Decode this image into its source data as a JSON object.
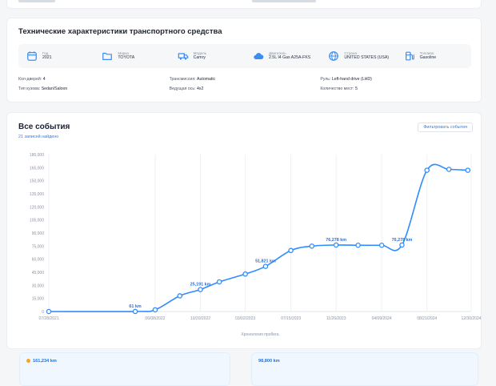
{
  "top_card": {},
  "specs": {
    "title": "Технические характеристики транспортного средства",
    "items": [
      {
        "label": "Год",
        "value": "2021",
        "icon": "calendar-icon"
      },
      {
        "label": "Марка",
        "value": "TOYOTA",
        "icon": "folder-icon"
      },
      {
        "label": "Модель",
        "value": "Camry",
        "icon": "truck-icon"
      },
      {
        "label": "Двигатель",
        "value": "2.5L I4 Gas A25A-FKS",
        "icon": "cloud-engine-icon"
      },
      {
        "label": "Страна",
        "value": "UNITED STATES (USA)",
        "icon": "globe-icon"
      },
      {
        "label": "Топливо",
        "value": "Gasoline",
        "icon": "fuel-icon"
      }
    ],
    "extra": [
      [
        {
          "label": "Кол-дверей:",
          "value": "4"
        },
        {
          "label": "Трансмиссия:",
          "value": "Automatic"
        },
        {
          "label": "Руль:",
          "value": "Left-hand drive (LHD)"
        }
      ],
      [
        {
          "label": "Тип кузова:",
          "value": "Sedan/Saloon"
        },
        {
          "label": "Ведущая ось:",
          "value": "4x2"
        },
        {
          "label": "Количество мест:",
          "value": "5"
        }
      ]
    ]
  },
  "events": {
    "title": "Все события",
    "subtitle": "21 записей найдено",
    "button": "Фильтровать события"
  },
  "chart_data": {
    "type": "line",
    "x_tick_labels": [
      "07/28/2021",
      "06/08/2022",
      "10/20/2022",
      "03/02/2023",
      "07/15/2023",
      "11/26/2023",
      "04/09/2024",
      "08/21/2024",
      "12/30/2024"
    ],
    "xlim": [
      "07/28/2021",
      "12/30/2024"
    ],
    "x_dates": [
      "07/28/2021",
      "04/10/2022",
      "06/08/2022",
      "08/20/2022",
      "10/20/2022",
      "12/15/2022",
      "03/02/2023",
      "05/01/2023",
      "07/15/2023",
      "09/15/2023",
      "11/26/2023",
      "01/30/2024",
      "04/09/2024",
      "06/08/2024",
      "08/21/2024",
      "10/25/2024",
      "12/20/2024"
    ],
    "y": [
      0,
      61,
      2000,
      18000,
      25191,
      34000,
      43000,
      51821,
      70000,
      75000,
      76278,
      76000,
      76000,
      76278,
      162000,
      163000,
      162000
    ],
    "ylim": [
      0,
      180000
    ],
    "y_ticks": [
      "180,000",
      "165,000",
      "150,000",
      "135,000",
      "120,000",
      "105,000",
      "90,000",
      "75,000",
      "60,000",
      "45,000",
      "30,000",
      "15,000",
      "0"
    ],
    "point_labels": [
      {
        "index": 1,
        "text": "61 km"
      },
      {
        "index": 4,
        "text": "25,191 km"
      },
      {
        "index": 7,
        "text": "51,821 km"
      },
      {
        "index": 10,
        "text": "76,278 km"
      },
      {
        "index": 13,
        "text": "76,278 km"
      }
    ],
    "xlabel": "Хронология пробега",
    "color": "#2f8bff",
    "grid": "vertical"
  },
  "stats": [
    {
      "value": "161,234 km"
    },
    {
      "value": "98,800 km"
    }
  ]
}
